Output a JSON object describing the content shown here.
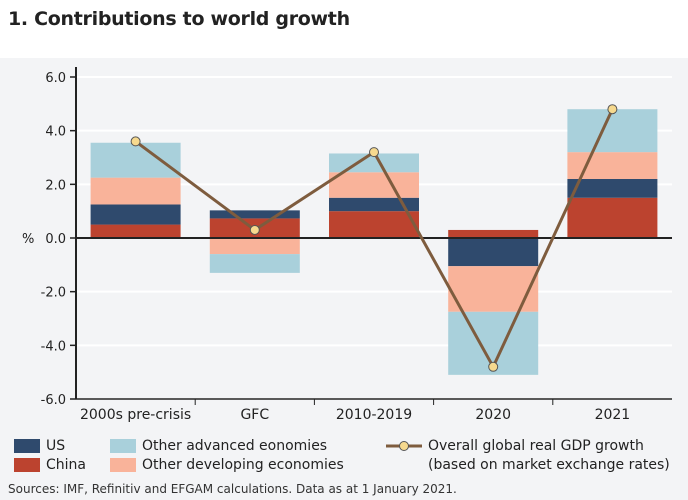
{
  "title": "1. Contributions to world growth",
  "source": "Sources: IMF, Refinitiv and EFGAM calculations. Data as at 1 January 2021.",
  "colors": {
    "US": "#2f4a6d",
    "China": "#bc432f",
    "Other advanced eonomies": "#a9d0db",
    "Other developing economies": "#f9b39a",
    "line": "#7e5c3e",
    "marker": "#f6d98e"
  },
  "chart_data": {
    "type": "bar",
    "stacked": true,
    "categories": [
      "2000s pre-crisis",
      "GFC",
      "2010-2019",
      "2020",
      "2021"
    ],
    "ylabel": "%",
    "ylim": [
      -6,
      6
    ],
    "yticks": [
      "6.0",
      "4.0",
      "2.0",
      "0.0",
      "-2.0",
      "-4.0",
      "-6.0"
    ],
    "grid": true,
    "legend_placement": "bottom",
    "series": [
      {
        "name": "China",
        "values": [
          0.5,
          0.73,
          1.0,
          0.3,
          1.5
        ]
      },
      {
        "name": "US",
        "values": [
          0.75,
          0.3,
          0.5,
          -1.05,
          0.7
        ]
      },
      {
        "name": "Other developing economies",
        "values": [
          1.0,
          -0.6,
          0.95,
          -1.7,
          1.0
        ]
      },
      {
        "name": "Other advanced eonomies",
        "values": [
          1.3,
          -0.7,
          0.7,
          -2.35,
          1.6
        ]
      }
    ],
    "line": {
      "name": "Overall global real GDP growth",
      "name2": "(based on market exchange rates)",
      "values": [
        3.6,
        0.3,
        3.2,
        -4.8,
        4.8
      ]
    }
  }
}
